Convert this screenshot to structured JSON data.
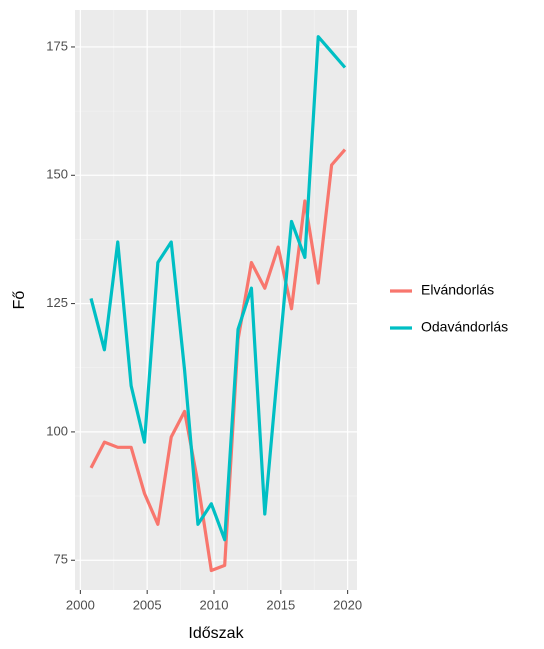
{
  "chart_data": {
    "type": "line",
    "x_label": "Időszak",
    "y_label": "Fő",
    "x": [
      2000.8,
      2001.8,
      2002.8,
      2003.8,
      2004.8,
      2005.8,
      2006.8,
      2007.8,
      2008.8,
      2009.8,
      2010.8,
      2011.8,
      2012.8,
      2013.8,
      2014.8,
      2015.8,
      2016.8,
      2017.8,
      2018.8,
      2019.8
    ],
    "series": [
      {
        "name": "Elvándorlás",
        "color": "#F8766D",
        "values": [
          93,
          98,
          97,
          97,
          88,
          82,
          99,
          104,
          90,
          73,
          74,
          118,
          133,
          128,
          136,
          124,
          145,
          129,
          152,
          155
        ]
      },
      {
        "name": "Odavándorlás",
        "color": "#00BFC4",
        "values": [
          126,
          116,
          137,
          109,
          98,
          133,
          137,
          112,
          82,
          86,
          79,
          120,
          128,
          84,
          113,
          141,
          134,
          177,
          174,
          171
        ]
      }
    ],
    "xlim": [
      1999.6,
      2020.7
    ],
    "ylim": [
      69.2,
      182.2
    ],
    "xticks": [
      2000,
      2005,
      2010,
      2015,
      2020
    ],
    "yticks": [
      75,
      100,
      125,
      150,
      175
    ],
    "grid": true,
    "legend_position": "right"
  }
}
